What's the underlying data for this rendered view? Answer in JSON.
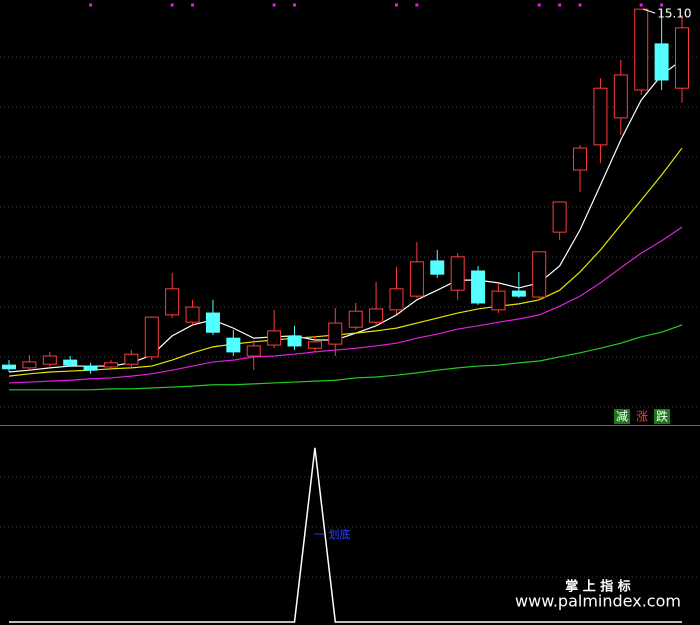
{
  "chart_data": {
    "type": "candlestick",
    "ylim": [
      6.0,
      15.3
    ],
    "up_color": "#ff3c3c",
    "down_color": "#54ffff",
    "open": [
      7.31,
      7.25,
      7.33,
      7.42,
      7.29,
      7.27,
      7.33,
      7.49,
      8.41,
      8.25,
      8.45,
      7.9,
      7.51,
      7.75,
      7.95,
      7.68,
      7.77,
      8.14,
      8.25,
      8.52,
      8.82,
      9.59,
      8.95,
      9.37,
      8.52,
      8.93,
      8.8,
      10.22,
      11.58,
      12.13,
      12.72,
      13.33,
      14.34,
      13.37
    ],
    "high": [
      7.42,
      7.53,
      7.6,
      7.51,
      7.36,
      7.42,
      7.64,
      8.36,
      9.33,
      8.74,
      8.74,
      8.08,
      7.86,
      8.52,
      8.17,
      7.95,
      8.56,
      8.67,
      9.13,
      9.46,
      10.0,
      9.83,
      9.76,
      9.48,
      9.11,
      9.35,
      9.79,
      10.88,
      12.13,
      13.59,
      13.99,
      15.1,
      15.08,
      14.97
    ],
    "low": [
      7.16,
      7.2,
      7.25,
      7.27,
      7.12,
      7.2,
      7.27,
      7.42,
      8.34,
      8.19,
      7.97,
      7.51,
      7.2,
      7.68,
      7.64,
      7.6,
      7.51,
      8.08,
      8.17,
      8.43,
      8.78,
      9.22,
      8.74,
      8.63,
      8.45,
      8.78,
      8.74,
      10.05,
      11.1,
      11.73,
      12.35,
      13.22,
      13.33,
      13.05
    ],
    "close": [
      7.23,
      7.38,
      7.51,
      7.31,
      7.2,
      7.36,
      7.55,
      8.36,
      8.98,
      8.58,
      8.03,
      7.6,
      7.73,
      8.06,
      7.73,
      7.82,
      8.23,
      8.49,
      8.54,
      8.98,
      9.57,
      9.3,
      9.68,
      8.67,
      8.93,
      8.82,
      9.79,
      10.88,
      12.06,
      13.37,
      13.66,
      15.1,
      13.55,
      14.69
    ],
    "max_label": "15.10",
    "moving_averages": [
      {
        "color": "#ffffff",
        "values": [
          7.16,
          7.2,
          7.25,
          7.29,
          7.29,
          7.29,
          7.36,
          7.53,
          7.95,
          8.19,
          8.3,
          8.12,
          7.9,
          7.93,
          7.95,
          7.86,
          7.86,
          8.01,
          8.17,
          8.41,
          8.74,
          8.95,
          9.17,
          9.17,
          9.11,
          9.0,
          9.11,
          9.48,
          10.27,
          11.25,
          12.24,
          13.11,
          13.66,
          13.99
        ]
      },
      {
        "color": "#e6e600",
        "values": [
          7.07,
          7.12,
          7.16,
          7.18,
          7.2,
          7.23,
          7.25,
          7.29,
          7.42,
          7.58,
          7.71,
          7.77,
          7.82,
          7.86,
          7.9,
          7.93,
          7.97,
          8.01,
          8.06,
          8.12,
          8.23,
          8.34,
          8.45,
          8.54,
          8.6,
          8.65,
          8.74,
          8.95,
          9.35,
          9.83,
          10.38,
          10.92,
          11.47,
          12.06
        ]
      },
      {
        "color": "#e020e0",
        "values": [
          6.92,
          6.94,
          6.96,
          6.98,
          7.01,
          7.03,
          7.07,
          7.12,
          7.2,
          7.29,
          7.38,
          7.42,
          7.49,
          7.51,
          7.55,
          7.6,
          7.64,
          7.68,
          7.73,
          7.79,
          7.9,
          7.99,
          8.1,
          8.17,
          8.25,
          8.32,
          8.41,
          8.6,
          8.82,
          9.11,
          9.44,
          9.76,
          10.03,
          10.33
        ]
      },
      {
        "color": "#22cc22",
        "values": [
          6.77,
          6.77,
          6.77,
          6.77,
          6.77,
          6.79,
          6.79,
          6.81,
          6.83,
          6.85,
          6.88,
          6.88,
          6.9,
          6.92,
          6.94,
          6.96,
          6.98,
          7.03,
          7.05,
          7.09,
          7.14,
          7.2,
          7.25,
          7.29,
          7.31,
          7.36,
          7.4,
          7.49,
          7.58,
          7.68,
          7.79,
          7.93,
          8.03,
          8.19
        ]
      }
    ],
    "top_markers": [
      4,
      8,
      9,
      13,
      14,
      19,
      20,
      26,
      27,
      28,
      31,
      32
    ],
    "marker_color": "#e020e0",
    "legend_tags": [
      "减",
      "涨",
      "跌"
    ],
    "indicator": {
      "ylim": [
        0,
        1.12
      ],
      "color": "#ffffff",
      "values": [
        0,
        0,
        0,
        0,
        0,
        0,
        0,
        0,
        0,
        0,
        0,
        0,
        0,
        0,
        0,
        1,
        0,
        0,
        0,
        0,
        0,
        0,
        0,
        0,
        0,
        0,
        0,
        0,
        0,
        0,
        0,
        0,
        0,
        0
      ],
      "label": "一 划底"
    }
  },
  "watermark": {
    "title": "掌 上 指 标",
    "url": "www.palmindex.com"
  }
}
